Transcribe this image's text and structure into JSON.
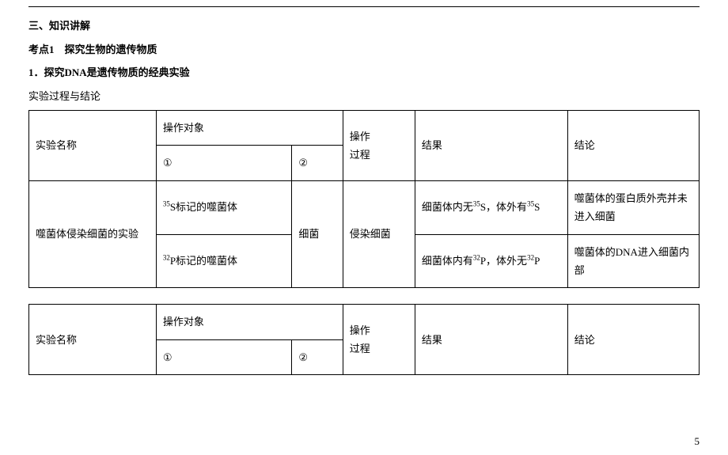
{
  "headings": {
    "section": "三、知识讲解",
    "topic": "考点1　探究生物的遗传物质",
    "item": "1．探究DNA是遗传物质的经典实验",
    "lead": "实验过程与结论"
  },
  "table_common": {
    "hdr_name": "实验名称",
    "hdr_op": "操作对象",
    "hdr_op1": "①",
    "hdr_op2": "②",
    "hdr_proc_l1": "操作",
    "hdr_proc_l2": "过程",
    "hdr_result": "结果",
    "hdr_conclusion": "结论"
  },
  "table1": {
    "exp_name": "噬菌体侵染细菌的实验",
    "row1_op1_pre": "",
    "row1_op1_s": "35",
    "row1_op1_post": "S标记的噬菌体",
    "row2_op1_pre": "",
    "row2_op1_s": "32",
    "row2_op1_post": "P标记的噬菌体",
    "op2": "细菌",
    "proc": "侵染细菌",
    "res1_a": "细菌体内无",
    "res1_s1": "35",
    "res1_b": "S，体外有",
    "res1_s2": "35",
    "res1_c": "S",
    "res2_a": "细菌体内有",
    "res2_s1": "32",
    "res2_b": "P，体外无",
    "res2_s2": "32",
    "res2_c": "P",
    "conc1": "噬菌体的蛋白质外壳并未进入细菌",
    "conc2": "噬菌体的DNA进入细菌内部"
  },
  "page_number": "5"
}
